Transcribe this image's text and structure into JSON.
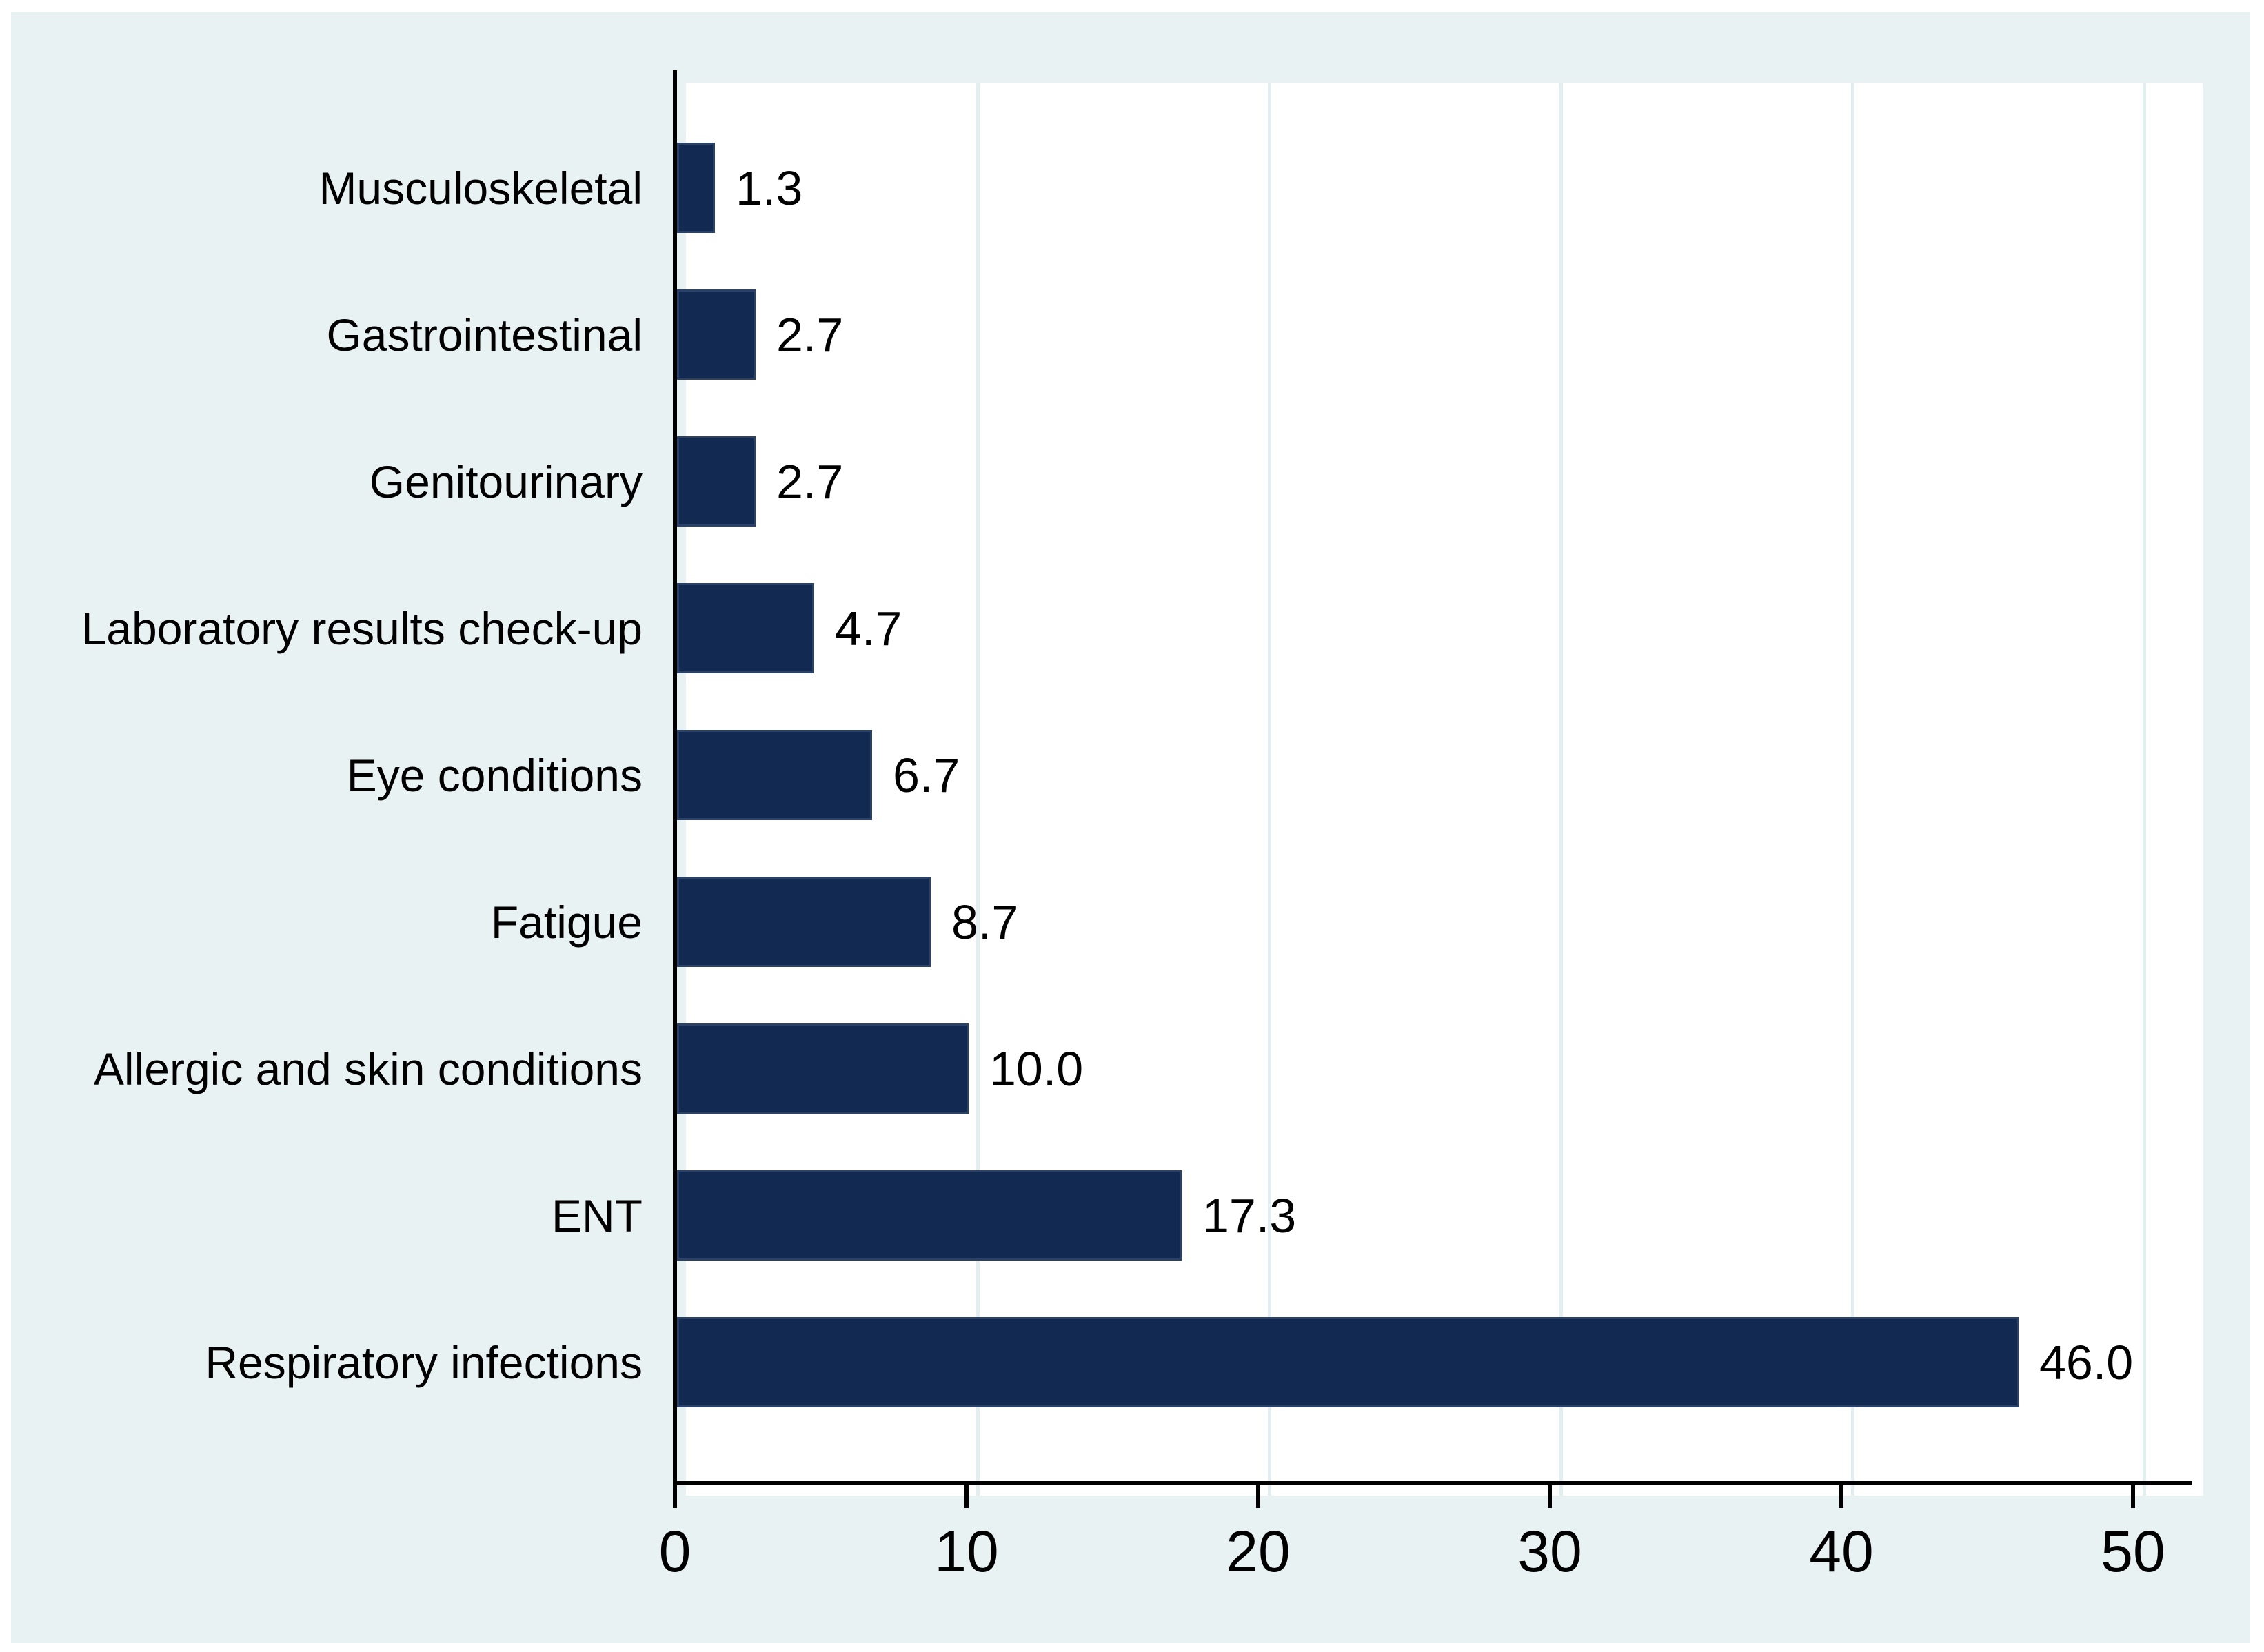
{
  "chart_data": {
    "type": "bar",
    "orientation": "horizontal",
    "title": "",
    "xlabel": "",
    "ylabel": "",
    "categories": [
      "Musculoskeletal",
      "Gastrointestinal",
      "Genitourinary",
      "Laboratory results check-up",
      "Eye conditions",
      "Fatigue",
      "Allergic and skin conditions",
      "ENT",
      "Respiratory infections"
    ],
    "values": [
      1.3,
      2.7,
      2.7,
      4.7,
      6.7,
      8.7,
      10.0,
      17.3,
      46.0
    ],
    "value_labels": [
      "1.3",
      "2.7",
      "2.7",
      "4.7",
      "6.7",
      "8.7",
      "10.0",
      "17.3",
      "46.0"
    ],
    "x_ticks": [
      0,
      10,
      20,
      30,
      40,
      50
    ],
    "x_tick_labels": [
      "0",
      "10",
      "20",
      "30",
      "40",
      "50"
    ],
    "xlim": [
      0,
      52
    ],
    "grid": true,
    "gridline_orientation": "vertical",
    "legend": "none",
    "colors": {
      "page_background": "#ffffff",
      "panel_background": "#e9f2f3",
      "plot_background": "#ffffff",
      "gridline": "#e2eef0",
      "axis_line": "#000000",
      "bar_fill": "#122a52",
      "bar_edge": "#2b4166",
      "text": "#000000"
    }
  }
}
